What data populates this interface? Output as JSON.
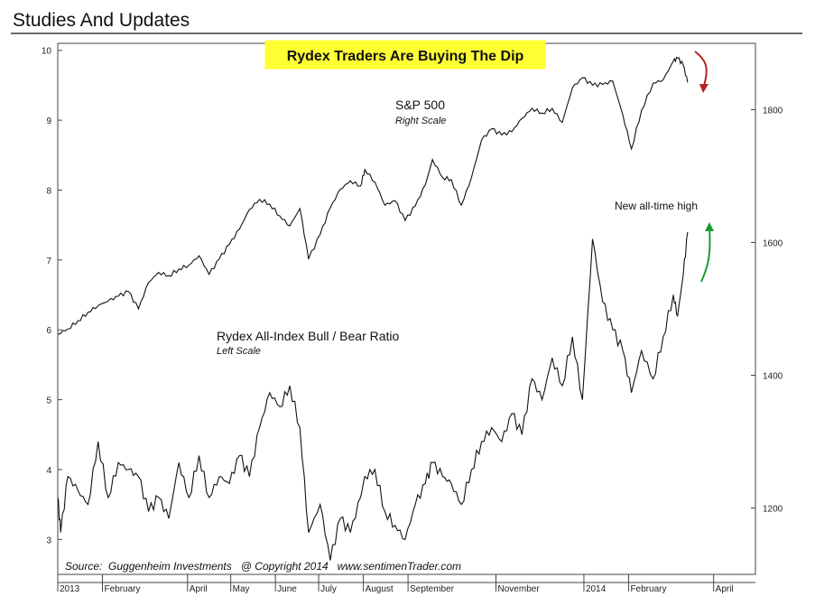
{
  "page": {
    "heading": "Studies And Updates"
  },
  "chart_data": {
    "type": "line",
    "title": "Rydex Traders Are Buying The Dip",
    "title_bg": "#ffff33",
    "x_axis": {
      "labels": [
        "2013",
        "February",
        "April",
        "May",
        "June",
        "July",
        "August",
        "September",
        "November",
        "2014",
        "February",
        "April"
      ]
    },
    "left_axis": {
      "ylim": [
        2.5,
        10.1
      ],
      "ticks": [
        3,
        4,
        5,
        6,
        7,
        8,
        9,
        10
      ]
    },
    "right_axis": {
      "ylim": [
        1100,
        1900
      ],
      "ticks": [
        1200,
        1400,
        1600,
        1800
      ]
    },
    "series": [
      {
        "name": "S&P 500",
        "sub": "Right Scale",
        "axis": "right",
        "color": "#111111",
        "points": [
          [
            "2013-01-01",
            1462
          ],
          [
            "2013-01-08",
            1470
          ],
          [
            "2013-01-15",
            1482
          ],
          [
            "2013-01-22",
            1495
          ],
          [
            "2013-01-29",
            1505
          ],
          [
            "2013-02-05",
            1512
          ],
          [
            "2013-02-12",
            1519
          ],
          [
            "2013-02-19",
            1526
          ],
          [
            "2013-02-26",
            1500
          ],
          [
            "2013-03-05",
            1540
          ],
          [
            "2013-03-12",
            1555
          ],
          [
            "2013-03-19",
            1550
          ],
          [
            "2013-03-26",
            1560
          ],
          [
            "2013-04-02",
            1566
          ],
          [
            "2013-04-09",
            1580
          ],
          [
            "2013-04-16",
            1552
          ],
          [
            "2013-04-23",
            1575
          ],
          [
            "2013-04-30",
            1597
          ],
          [
            "2013-05-07",
            1620
          ],
          [
            "2013-05-14",
            1650
          ],
          [
            "2013-05-21",
            1665
          ],
          [
            "2013-05-28",
            1658
          ],
          [
            "2013-06-04",
            1640
          ],
          [
            "2013-06-11",
            1625
          ],
          [
            "2013-06-18",
            1651
          ],
          [
            "2013-06-24",
            1575
          ],
          [
            "2013-07-02",
            1612
          ],
          [
            "2013-07-09",
            1652
          ],
          [
            "2013-07-16",
            1680
          ],
          [
            "2013-07-23",
            1693
          ],
          [
            "2013-07-30",
            1685
          ],
          [
            "2013-08-02",
            1710
          ],
          [
            "2013-08-09",
            1691
          ],
          [
            "2013-08-16",
            1656
          ],
          [
            "2013-08-23",
            1663
          ],
          [
            "2013-08-30",
            1633
          ],
          [
            "2013-09-06",
            1655
          ],
          [
            "2013-09-13",
            1687
          ],
          [
            "2013-09-18",
            1725
          ],
          [
            "2013-09-25",
            1698
          ],
          [
            "2013-10-01",
            1695
          ],
          [
            "2013-10-08",
            1656
          ],
          [
            "2013-10-15",
            1698
          ],
          [
            "2013-10-22",
            1754
          ],
          [
            "2013-10-29",
            1771
          ],
          [
            "2013-11-05",
            1762
          ],
          [
            "2013-11-12",
            1767
          ],
          [
            "2013-11-19",
            1787
          ],
          [
            "2013-11-26",
            1802
          ],
          [
            "2013-12-03",
            1795
          ],
          [
            "2013-12-10",
            1802
          ],
          [
            "2013-12-17",
            1781
          ],
          [
            "2013-12-24",
            1833
          ],
          [
            "2013-12-31",
            1848
          ],
          [
            "2014-01-07",
            1837
          ],
          [
            "2014-01-14",
            1838
          ],
          [
            "2014-01-21",
            1843
          ],
          [
            "2014-01-28",
            1792
          ],
          [
            "2014-02-03",
            1741
          ],
          [
            "2014-02-10",
            1799
          ],
          [
            "2014-02-18",
            1840
          ],
          [
            "2014-02-25",
            1845
          ],
          [
            "2014-03-04",
            1873
          ],
          [
            "2014-03-07",
            1878
          ],
          [
            "2014-03-11",
            1867
          ],
          [
            "2014-03-14",
            1841
          ]
        ]
      },
      {
        "name": "Rydex All-Index Bull / Bear Ratio",
        "sub": "Left Scale",
        "axis": "left",
        "color": "#111111",
        "points": [
          [
            "2013-01-01",
            3.6
          ],
          [
            "2013-01-03",
            3.1
          ],
          [
            "2013-01-08",
            3.9
          ],
          [
            "2013-01-15",
            3.7
          ],
          [
            "2013-01-22",
            3.5
          ],
          [
            "2013-01-29",
            4.4
          ],
          [
            "2013-02-05",
            3.6
          ],
          [
            "2013-02-12",
            4.1
          ],
          [
            "2013-02-19",
            4.0
          ],
          [
            "2013-02-26",
            3.9
          ],
          [
            "2013-03-05",
            3.4
          ],
          [
            "2013-03-12",
            3.6
          ],
          [
            "2013-03-19",
            3.3
          ],
          [
            "2013-03-26",
            4.1
          ],
          [
            "2013-04-02",
            3.6
          ],
          [
            "2013-04-09",
            4.2
          ],
          [
            "2013-04-16",
            3.6
          ],
          [
            "2013-04-23",
            3.9
          ],
          [
            "2013-04-30",
            3.8
          ],
          [
            "2013-05-07",
            4.2
          ],
          [
            "2013-05-14",
            3.9
          ],
          [
            "2013-05-21",
            4.6
          ],
          [
            "2013-05-28",
            5.1
          ],
          [
            "2013-06-04",
            4.9
          ],
          [
            "2013-06-11",
            5.2
          ],
          [
            "2013-06-18",
            4.6
          ],
          [
            "2013-06-24",
            3.1
          ],
          [
            "2013-07-02",
            3.5
          ],
          [
            "2013-07-09",
            2.7
          ],
          [
            "2013-07-16",
            3.3
          ],
          [
            "2013-07-23",
            3.1
          ],
          [
            "2013-07-30",
            3.6
          ],
          [
            "2013-08-02",
            3.9
          ],
          [
            "2013-08-09",
            4.0
          ],
          [
            "2013-08-16",
            3.4
          ],
          [
            "2013-08-23",
            3.2
          ],
          [
            "2013-08-30",
            3.0
          ],
          [
            "2013-09-06",
            3.5
          ],
          [
            "2013-09-13",
            3.8
          ],
          [
            "2013-09-18",
            4.1
          ],
          [
            "2013-09-25",
            3.9
          ],
          [
            "2013-10-01",
            3.8
          ],
          [
            "2013-10-08",
            3.5
          ],
          [
            "2013-10-15",
            4.0
          ],
          [
            "2013-10-22",
            4.4
          ],
          [
            "2013-10-29",
            4.6
          ],
          [
            "2013-11-05",
            4.4
          ],
          [
            "2013-11-12",
            4.8
          ],
          [
            "2013-11-19",
            4.5
          ],
          [
            "2013-11-26",
            5.3
          ],
          [
            "2013-12-03",
            5.0
          ],
          [
            "2013-12-10",
            5.6
          ],
          [
            "2013-12-17",
            5.2
          ],
          [
            "2013-12-24",
            5.9
          ],
          [
            "2013-12-31",
            5.0
          ],
          [
            "2014-01-07",
            7.3
          ],
          [
            "2014-01-14",
            6.4
          ],
          [
            "2014-01-21",
            6.0
          ],
          [
            "2014-01-28",
            5.7
          ],
          [
            "2014-02-03",
            5.1
          ],
          [
            "2014-02-10",
            5.7
          ],
          [
            "2014-02-18",
            5.3
          ],
          [
            "2014-02-25",
            5.9
          ],
          [
            "2014-03-04",
            6.5
          ],
          [
            "2014-03-07",
            6.2
          ],
          [
            "2014-03-11",
            6.8
          ],
          [
            "2014-03-14",
            7.4
          ]
        ]
      }
    ],
    "annotations": [
      {
        "text": "New all-time high"
      },
      {
        "kind": "arrow",
        "direction": "down",
        "color": "#b22222"
      },
      {
        "kind": "arrow",
        "direction": "up",
        "color": "#1a9a35"
      }
    ],
    "source": "Source:  Guggenheim Investments   @ Copyright 2014   www.sentimenTrader.com"
  }
}
